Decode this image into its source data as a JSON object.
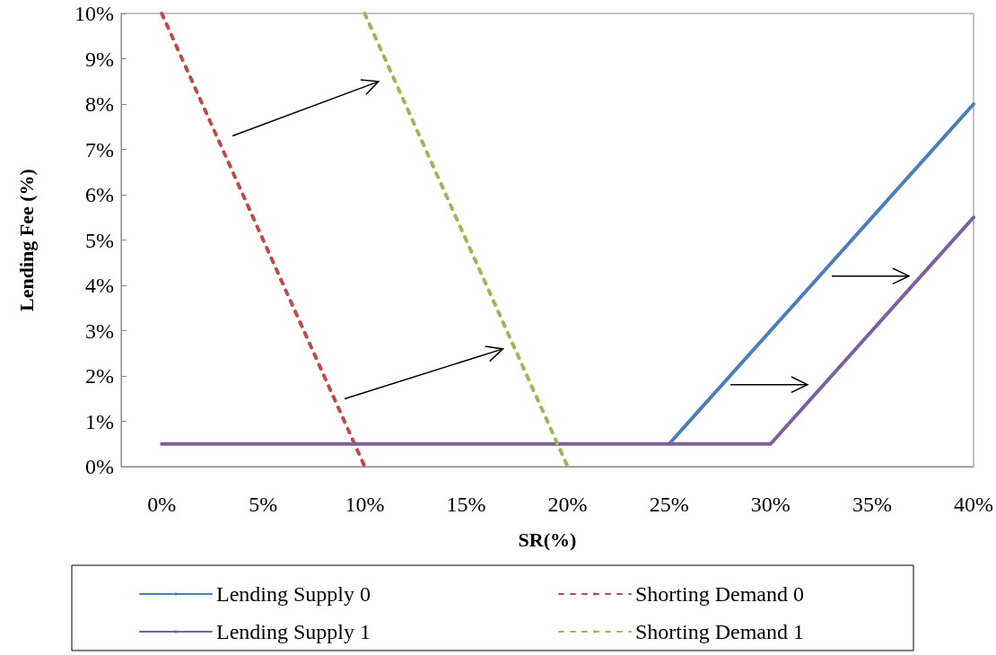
{
  "chart_data": {
    "type": "line",
    "xlabel": "SR(%)",
    "ylabel": "Lending Fee (%)",
    "series": [
      {
        "name": "Lending Supply 0",
        "color": "#4a7ebb",
        "line_style": "solid",
        "x": [
          25,
          33,
          40
        ],
        "values": [
          0.5,
          4.5,
          8
        ]
      },
      {
        "name": "Shorting Demand 0",
        "color": "#be4b48",
        "line_style": "dashed",
        "x": [
          0,
          10
        ],
        "values": [
          10,
          0
        ]
      },
      {
        "name": "Lending Supply 1",
        "color": "#7d5fa0",
        "line_style": "solid",
        "x": [
          0,
          30,
          40
        ],
        "values": [
          0.5,
          0.5,
          5.5
        ]
      },
      {
        "name": "Shorting Demand 1",
        "color": "#98b954",
        "line_style": "dashed",
        "x": [
          10,
          20
        ],
        "values": [
          10,
          0
        ]
      }
    ],
    "xlim": [
      -2,
      40
    ],
    "ylim": [
      0,
      10
    ],
    "xticks": [
      {
        "value": 0,
        "label": "0%"
      },
      {
        "value": 5,
        "label": "5%"
      },
      {
        "value": 10,
        "label": "10%"
      },
      {
        "value": 15,
        "label": "15%"
      },
      {
        "value": 20,
        "label": "20%"
      },
      {
        "value": 25,
        "label": "25%"
      },
      {
        "value": 30,
        "label": "30%"
      },
      {
        "value": 35,
        "label": "35%"
      },
      {
        "value": 40,
        "label": "40%"
      }
    ],
    "yticks": [
      {
        "value": 0,
        "label": "0%"
      },
      {
        "value": 1,
        "label": "1%"
      },
      {
        "value": 2,
        "label": "2%"
      },
      {
        "value": 3,
        "label": "3%"
      },
      {
        "value": 4,
        "label": "4%"
      },
      {
        "value": 5,
        "label": "5%"
      },
      {
        "value": 6,
        "label": "6%"
      },
      {
        "value": 7,
        "label": "7%"
      },
      {
        "value": 8,
        "label": "8%"
      },
      {
        "value": 9,
        "label": "9%"
      },
      {
        "value": 10,
        "label": "10%"
      }
    ],
    "grid": false,
    "legend": "bottom",
    "marker": "none"
  }
}
